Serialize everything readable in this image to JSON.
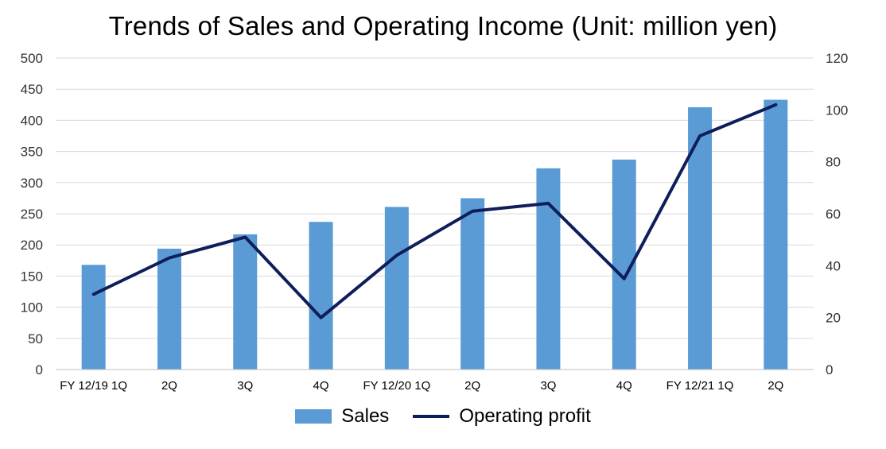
{
  "chart_data": {
    "type": "bar",
    "title": "Trends of Sales and Operating Income (Unit: million yen)",
    "categories": [
      "FY 12/19 1Q",
      "2Q",
      "3Q",
      "4Q",
      "FY 12/20 1Q",
      "2Q",
      "3Q",
      "4Q",
      "FY 12/21 1Q",
      "2Q"
    ],
    "series": [
      {
        "name": "Sales",
        "type": "bar",
        "axis": "left",
        "color": "#5B9BD5",
        "values": [
          168,
          194,
          217,
          237,
          261,
          275,
          323,
          337,
          421,
          433
        ]
      },
      {
        "name": "Operating profit",
        "type": "line",
        "axis": "right",
        "color": "#0E1E5B",
        "values": [
          29,
          43,
          51,
          20,
          44,
          61,
          64,
          35,
          90,
          102
        ]
      }
    ],
    "y_left": {
      "min": 0,
      "max": 500,
      "ticks": [
        0,
        50,
        100,
        150,
        200,
        250,
        300,
        350,
        400,
        450,
        500
      ]
    },
    "y_right": {
      "min": 0,
      "max": 120,
      "ticks": [
        0,
        20,
        40,
        60,
        80,
        100,
        120
      ]
    },
    "grid": true,
    "legend_position": "bottom"
  }
}
